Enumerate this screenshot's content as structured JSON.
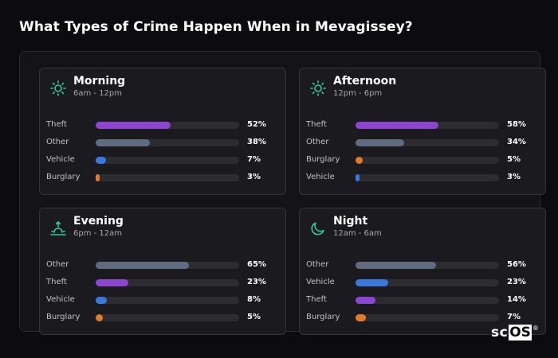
{
  "page": {
    "title": "What Types of Crime Happen When in Mevagissey?"
  },
  "colors": {
    "theft": "#8b45cf",
    "other": "#5f6b7f",
    "vehicle": "#3a78db",
    "burglary": "#e07a2c",
    "icon": "#35c9a2"
  },
  "cards": [
    {
      "title": "Morning",
      "range": "6am - 12pm",
      "icon": "sun-icon",
      "rows": [
        {
          "label": "Theft",
          "value": 52,
          "value_text": "52%",
          "color": "#8b45cf"
        },
        {
          "label": "Other",
          "value": 38,
          "value_text": "38%",
          "color": "#5f6b7f"
        },
        {
          "label": "Vehicle",
          "value": 7,
          "value_text": "7%",
          "color": "#3a78db"
        },
        {
          "label": "Burglary",
          "value": 3,
          "value_text": "3%",
          "color": "#e07a2c"
        }
      ]
    },
    {
      "title": "Afternoon",
      "range": "12pm - 6pm",
      "icon": "sun-icon",
      "rows": [
        {
          "label": "Theft",
          "value": 58,
          "value_text": "58%",
          "color": "#8b45cf"
        },
        {
          "label": "Other",
          "value": 34,
          "value_text": "34%",
          "color": "#5f6b7f"
        },
        {
          "label": "Burglary",
          "value": 5,
          "value_text": "5%",
          "color": "#e07a2c"
        },
        {
          "label": "Vehicle",
          "value": 3,
          "value_text": "3%",
          "color": "#3a78db"
        }
      ]
    },
    {
      "title": "Evening",
      "range": "6pm - 12am",
      "icon": "sunset-icon",
      "rows": [
        {
          "label": "Other",
          "value": 65,
          "value_text": "65%",
          "color": "#5f6b7f"
        },
        {
          "label": "Theft",
          "value": 23,
          "value_text": "23%",
          "color": "#8b45cf"
        },
        {
          "label": "Vehicle",
          "value": 8,
          "value_text": "8%",
          "color": "#3a78db"
        },
        {
          "label": "Burglary",
          "value": 5,
          "value_text": "5%",
          "color": "#e07a2c"
        }
      ]
    },
    {
      "title": "Night",
      "range": "12am - 6am",
      "icon": "moon-icon",
      "rows": [
        {
          "label": "Other",
          "value": 56,
          "value_text": "56%",
          "color": "#5f6b7f"
        },
        {
          "label": "Vehicle",
          "value": 23,
          "value_text": "23%",
          "color": "#3a78db"
        },
        {
          "label": "Theft",
          "value": 14,
          "value_text": "14%",
          "color": "#8b45cf"
        },
        {
          "label": "Burglary",
          "value": 7,
          "value_text": "7%",
          "color": "#e07a2c"
        }
      ]
    }
  ],
  "logo": {
    "prefix": "sc",
    "boxed": "OS",
    "mark": "®"
  }
}
